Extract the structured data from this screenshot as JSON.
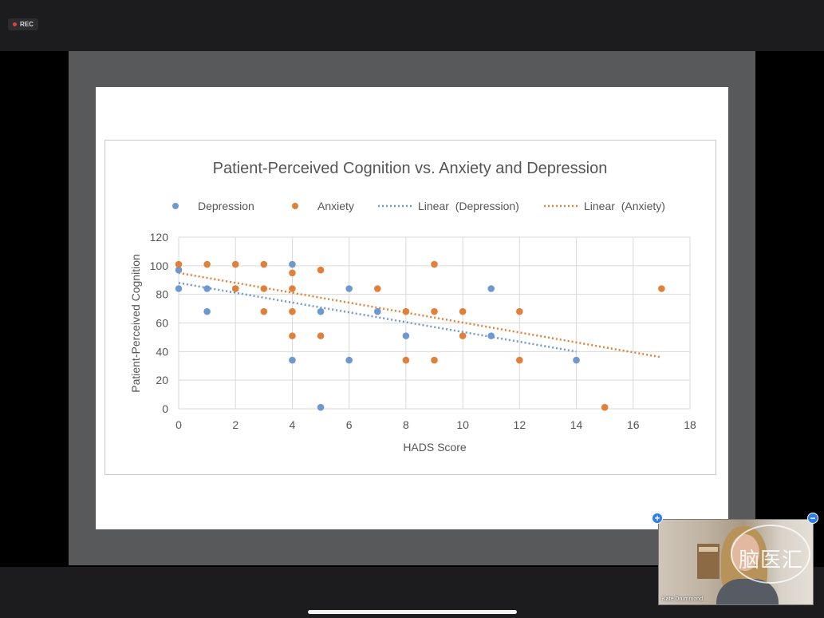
{
  "recording": {
    "label": "REC"
  },
  "participant": {
    "name": "Kate Drummond",
    "watermark": "脑医汇"
  },
  "tile_controls": {
    "add_icon": "+",
    "remove_icon": "−"
  },
  "colors": {
    "depression": "#6f98cf",
    "anxiety": "#e0813b",
    "rec": "#e0413a"
  },
  "chart_data": {
    "type": "scatter",
    "title": "Patient-Perceived Cognition vs. Anxiety and Depression",
    "xlabel": "HADS Score",
    "ylabel": "Patient-Perceived Cognition",
    "xlim": [
      0,
      18
    ],
    "ylim": [
      0,
      120
    ],
    "xticks": [
      0,
      2,
      4,
      6,
      8,
      10,
      12,
      14,
      16,
      18
    ],
    "yticks": [
      0,
      20,
      40,
      60,
      80,
      100,
      120
    ],
    "grid": true,
    "legend_position": "top",
    "legend": [
      "Depression",
      "Anxiety",
      "Linear  (Depression)",
      "Linear  (Anxiety)"
    ],
    "series": [
      {
        "name": "Depression",
        "points": [
          [
            0,
            84
          ],
          [
            0,
            97
          ],
          [
            1,
            84
          ],
          [
            1,
            68
          ],
          [
            2,
            84
          ],
          [
            4,
            101
          ],
          [
            4,
            34
          ],
          [
            5,
            68
          ],
          [
            5,
            1
          ],
          [
            6,
            84
          ],
          [
            6,
            34
          ],
          [
            7,
            68
          ],
          [
            8,
            51
          ],
          [
            11,
            84
          ],
          [
            11,
            51
          ],
          [
            14,
            34
          ]
        ]
      },
      {
        "name": "Anxiety",
        "points": [
          [
            0,
            101
          ],
          [
            1,
            101
          ],
          [
            2,
            101
          ],
          [
            2,
            84
          ],
          [
            3,
            101
          ],
          [
            3,
            84
          ],
          [
            3,
            68
          ],
          [
            4,
            95
          ],
          [
            4,
            84
          ],
          [
            4,
            68
          ],
          [
            4,
            51
          ],
          [
            5,
            97
          ],
          [
            5,
            51
          ],
          [
            7,
            84
          ],
          [
            8,
            68
          ],
          [
            8,
            34
          ],
          [
            9,
            101
          ],
          [
            9,
            68
          ],
          [
            9,
            34
          ],
          [
            10,
            68
          ],
          [
            10,
            51
          ],
          [
            12,
            68
          ],
          [
            12,
            34
          ],
          [
            15,
            1
          ],
          [
            17,
            84
          ]
        ]
      }
    ],
    "trendlines": [
      {
        "name": "Linear  (Depression)",
        "from": [
          0,
          88
        ],
        "to": [
          14,
          40
        ]
      },
      {
        "name": "Linear  (Anxiety)",
        "from": [
          0,
          95
        ],
        "to": [
          17,
          36
        ]
      }
    ]
  }
}
